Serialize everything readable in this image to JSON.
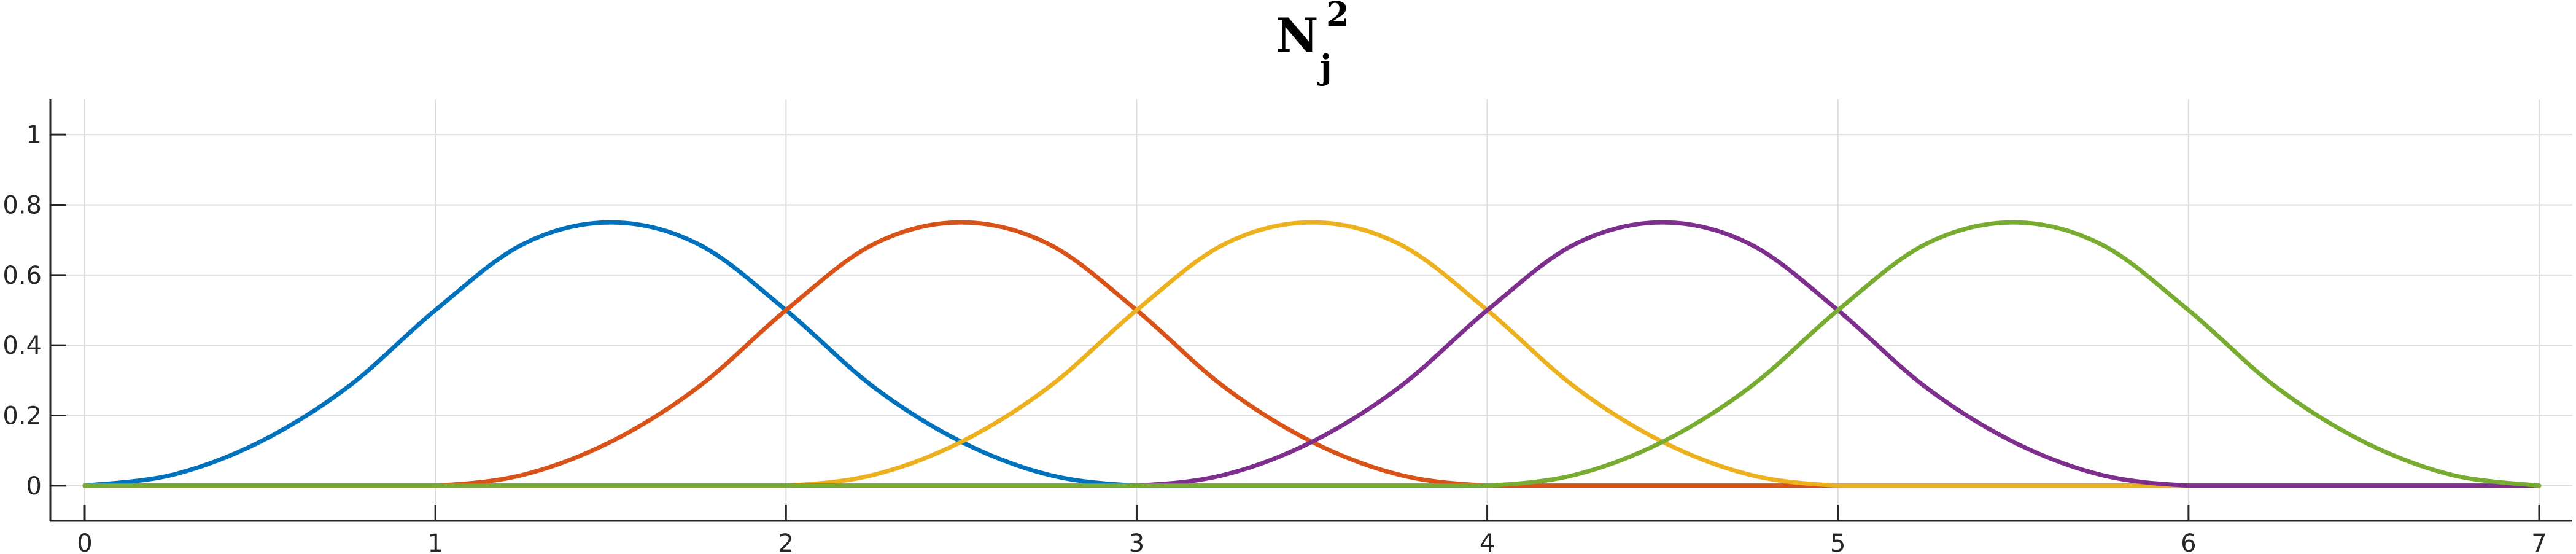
{
  "chart_data": {
    "type": "line",
    "title": {
      "base": "N",
      "superscript": "2",
      "subscript": "j"
    },
    "xlabel": "",
    "ylabel": "",
    "xlim": [
      0,
      7
    ],
    "ylim": [
      -0.1,
      1.1
    ],
    "x_ticks": [
      0,
      1,
      2,
      3,
      4,
      5,
      6,
      7
    ],
    "y_ticks": [
      0,
      0.2,
      0.4,
      0.6,
      0.8,
      1
    ],
    "x_tick_labels": [
      "0",
      "1",
      "2",
      "3",
      "4",
      "5",
      "6",
      "7"
    ],
    "y_tick_labels": [
      "0",
      "0.2",
      "0.4",
      "0.6",
      "0.8",
      "1"
    ],
    "grid": true,
    "legend": "none",
    "series": [
      {
        "color": "#0072bd",
        "x": [
          0,
          0.25,
          0.5,
          0.75,
          1,
          1.25,
          1.5,
          1.75,
          2,
          2.25,
          2.5,
          2.75,
          3,
          3.25,
          3.5,
          3.75,
          4,
          4.25,
          4.5,
          4.75,
          5,
          5.25,
          5.5,
          5.75,
          6,
          6.25,
          6.5,
          6.75,
          7
        ],
        "values": [
          0,
          0.031,
          0.125,
          0.281,
          0.5,
          0.688,
          0.75,
          0.688,
          0.5,
          0.281,
          0.125,
          0.031,
          0,
          0,
          0,
          0,
          0,
          0,
          0,
          0,
          0,
          0,
          0,
          0,
          0,
          0,
          0,
          0,
          0
        ]
      },
      {
        "color": "#d95319",
        "x": [
          0,
          0.25,
          0.5,
          0.75,
          1,
          1.25,
          1.5,
          1.75,
          2,
          2.25,
          2.5,
          2.75,
          3,
          3.25,
          3.5,
          3.75,
          4,
          4.25,
          4.5,
          4.75,
          5,
          5.25,
          5.5,
          5.75,
          6,
          6.25,
          6.5,
          6.75,
          7
        ],
        "values": [
          0,
          0,
          0,
          0,
          0,
          0.031,
          0.125,
          0.281,
          0.5,
          0.688,
          0.75,
          0.688,
          0.5,
          0.281,
          0.125,
          0.031,
          0,
          0,
          0,
          0,
          0,
          0,
          0,
          0,
          0,
          0,
          0,
          0,
          0
        ]
      },
      {
        "color": "#edb120",
        "x": [
          0,
          0.25,
          0.5,
          0.75,
          1,
          1.25,
          1.5,
          1.75,
          2,
          2.25,
          2.5,
          2.75,
          3,
          3.25,
          3.5,
          3.75,
          4,
          4.25,
          4.5,
          4.75,
          5,
          5.25,
          5.5,
          5.75,
          6,
          6.25,
          6.5,
          6.75,
          7
        ],
        "values": [
          0,
          0,
          0,
          0,
          0,
          0,
          0,
          0,
          0,
          0.031,
          0.125,
          0.281,
          0.5,
          0.688,
          0.75,
          0.688,
          0.5,
          0.281,
          0.125,
          0.031,
          0,
          0,
          0,
          0,
          0,
          0,
          0,
          0,
          0
        ]
      },
      {
        "color": "#7e2f8e",
        "x": [
          0,
          0.25,
          0.5,
          0.75,
          1,
          1.25,
          1.5,
          1.75,
          2,
          2.25,
          2.5,
          2.75,
          3,
          3.25,
          3.5,
          3.75,
          4,
          4.25,
          4.5,
          4.75,
          5,
          5.25,
          5.5,
          5.75,
          6,
          6.25,
          6.5,
          6.75,
          7
        ],
        "values": [
          0,
          0,
          0,
          0,
          0,
          0,
          0,
          0,
          0,
          0,
          0,
          0,
          0,
          0.031,
          0.125,
          0.281,
          0.5,
          0.688,
          0.75,
          0.688,
          0.5,
          0.281,
          0.125,
          0.031,
          0,
          0,
          0,
          0,
          0
        ]
      },
      {
        "color": "#77ac30",
        "x": [
          0,
          0.25,
          0.5,
          0.75,
          1,
          1.25,
          1.5,
          1.75,
          2,
          2.25,
          2.5,
          2.75,
          3,
          3.25,
          3.5,
          3.75,
          4,
          4.25,
          4.5,
          4.75,
          5,
          5.25,
          5.5,
          5.75,
          6,
          6.25,
          6.5,
          6.75,
          7
        ],
        "values": [
          0,
          0,
          0,
          0,
          0,
          0,
          0,
          0,
          0,
          0,
          0,
          0,
          0,
          0,
          0,
          0,
          0,
          0.031,
          0.125,
          0.281,
          0.5,
          0.688,
          0.75,
          0.688,
          0.5,
          0.281,
          0.125,
          0.031,
          0
        ]
      }
    ]
  }
}
